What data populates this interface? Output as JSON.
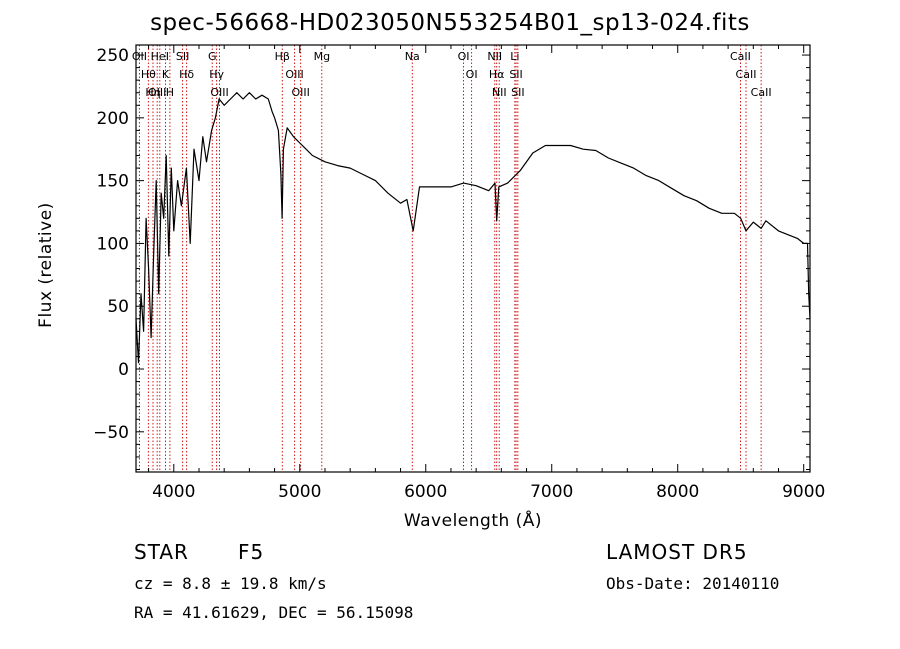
{
  "chart_data": {
    "type": "line",
    "title": "spec-56668-HD023050N553254B01_sp13-024.fits",
    "xlabel": "Wavelength (Å)",
    "ylabel": "Flux (relative)",
    "xlim": [
      3700,
      9050
    ],
    "ylim": [
      -82,
      258
    ],
    "xticks": [
      4000,
      5000,
      6000,
      7000,
      8000,
      9000
    ],
    "yticks": [
      -50,
      0,
      50,
      100,
      150,
      200,
      250
    ],
    "grid": false,
    "line_color": "#000000",
    "marker_color": "#cc0000",
    "series": [
      {
        "x": [
          3700,
          3720,
          3740,
          3760,
          3780,
          3800,
          3820,
          3840,
          3860,
          3880,
          3900,
          3920,
          3940,
          3960,
          3980,
          4000,
          4030,
          4060,
          4100,
          4130,
          4160,
          4200,
          4230,
          4260,
          4300,
          4330,
          4360,
          4400,
          4450,
          4500,
          4550,
          4600,
          4650,
          4700,
          4750,
          4780,
          4800,
          4830,
          4850,
          4860,
          4870,
          4900,
          4950,
          5000,
          5050,
          5100,
          5200,
          5300,
          5400,
          5500,
          5600,
          5700,
          5800,
          5850,
          5900,
          5950,
          6000,
          6100,
          6200,
          6300,
          6400,
          6500,
          6550,
          6563,
          6580,
          6650,
          6750,
          6850,
          6950,
          7050,
          7150,
          7250,
          7350,
          7450,
          7550,
          7650,
          7750,
          7850,
          7950,
          8050,
          8150,
          8250,
          8350,
          8450,
          8500,
          8542,
          8600,
          8662,
          8700,
          8800,
          8900,
          8950,
          9000,
          9030,
          9040,
          9050
        ],
        "y": [
          40,
          5,
          60,
          30,
          120,
          80,
          25,
          90,
          150,
          60,
          140,
          120,
          170,
          90,
          160,
          110,
          150,
          130,
          160,
          100,
          175,
          150,
          185,
          165,
          190,
          200,
          215,
          210,
          215,
          220,
          215,
          220,
          215,
          218,
          215,
          205,
          200,
          190,
          155,
          120,
          175,
          192,
          185,
          180,
          175,
          170,
          165,
          162,
          160,
          155,
          150,
          140,
          132,
          135,
          110,
          145,
          145,
          145,
          145,
          148,
          146,
          142,
          148,
          118,
          145,
          148,
          158,
          172,
          178,
          178,
          178,
          175,
          174,
          168,
          164,
          160,
          154,
          150,
          144,
          138,
          134,
          128,
          124,
          124,
          120,
          110,
          117,
          112,
          118,
          110,
          106,
          104,
          100,
          100,
          60,
          40
        ]
      }
    ],
    "spectral_lines": [
      {
        "label": "Hθ",
        "wavelength": 3798
      },
      {
        "label": "OII",
        "wavelength": 3727
      },
      {
        "label": "OIII",
        "wavelength": 3868
      },
      {
        "label": "Hη",
        "wavelength": 3835
      },
      {
        "label": "HeI",
        "wavelength": 3889
      },
      {
        "label": "K",
        "wavelength": 3934
      },
      {
        "label": "H",
        "wavelength": 3969
      },
      {
        "label": "Hδ",
        "wavelength": 4102
      },
      {
        "label": "SII",
        "wavelength": 4070
      },
      {
        "label": "OIII",
        "wavelength": 4363
      },
      {
        "label": "Hγ",
        "wavelength": 4340
      },
      {
        "label": "G",
        "wavelength": 4305
      },
      {
        "label": "Hβ",
        "wavelength": 4861
      },
      {
        "label": "OIII",
        "wavelength": 4959
      },
      {
        "label": "OIII",
        "wavelength": 5007
      },
      {
        "label": "Mg",
        "wavelength": 5175
      },
      {
        "label": "Na",
        "wavelength": 5893
      },
      {
        "label": "OI",
        "wavelength": 6300
      },
      {
        "label": "OI",
        "wavelength": 6364
      },
      {
        "label": "NII",
        "wavelength": 6548
      },
      {
        "label": "Hα",
        "wavelength": 6563
      },
      {
        "label": "NII",
        "wavelength": 6583
      },
      {
        "label": "Li",
        "wavelength": 6707
      },
      {
        "label": "SII",
        "wavelength": 6717
      },
      {
        "label": "SII",
        "wavelength": 6731
      },
      {
        "label": "CaII",
        "wavelength": 8498
      },
      {
        "label": "CaII",
        "wavelength": 8542
      },
      {
        "label": "CaII",
        "wavelength": 8662
      }
    ]
  },
  "info": {
    "class": "STAR",
    "subclass": "F5",
    "redshift": "cz = 8.8 ± 19.8 km/s",
    "coords": "RA =  41.61629, DEC =  56.15098",
    "survey": "LAMOST DR5",
    "obs_date": "Obs-Date: 20140110"
  }
}
